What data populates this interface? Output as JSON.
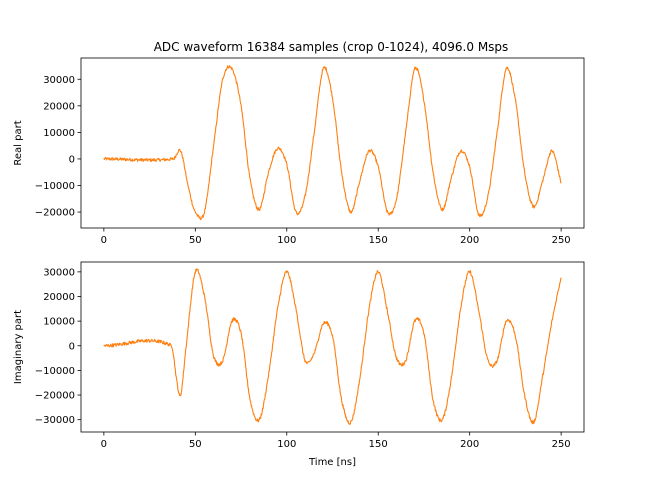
{
  "figure": {
    "title": "ADC waveform 16384 samples (crop 0-1024), 4096.0 Msps"
  },
  "chart_data": [
    {
      "type": "line",
      "title": "ADC waveform 16384 samples (crop 0-1024), 4096.0 Msps",
      "xlabel": "",
      "ylabel": "Real part",
      "xlim": [
        -12.5,
        262.5
      ],
      "ylim": [
        -26000,
        38000
      ],
      "xticks": [
        0,
        50,
        100,
        150,
        200,
        250
      ],
      "yticks": [
        -20000,
        -10000,
        0,
        10000,
        20000,
        30000
      ],
      "ytick_labels": [
        "−20000",
        "−10000",
        "0",
        "10000",
        "20000",
        "30000"
      ],
      "grid": false,
      "color": "#ff7f0e",
      "noise_amplitude": 600,
      "series": [
        {
          "x": [
            0,
            38,
            42,
            46,
            50,
            55,
            60,
            65,
            70,
            75,
            80,
            85,
            90,
            95,
            100,
            105,
            110,
            115,
            120,
            125,
            130,
            135,
            140,
            145,
            150,
            155,
            160,
            165,
            170,
            175,
            180,
            185,
            190,
            195,
            200,
            205,
            210,
            215,
            220,
            225,
            230,
            235,
            240,
            245,
            250
          ],
          "y": [
            0,
            0,
            3000,
            -10000,
            -20000,
            -20000,
            5000,
            30000,
            34000,
            20000,
            -8000,
            -19000,
            -5000,
            4000,
            -2000,
            -20000,
            -14000,
            10000,
            34000,
            23000,
            -5000,
            -20000,
            -8000,
            3000,
            -3000,
            -20000,
            -15000,
            10000,
            34000,
            22000,
            -5000,
            -19000,
            -7000,
            3000,
            -3000,
            -21000,
            -14000,
            10000,
            34000,
            22000,
            -5000,
            -18000,
            -8000,
            3000,
            -9000
          ]
        }
      ]
    },
    {
      "type": "line",
      "title": "",
      "xlabel": "Time [ns]",
      "ylabel": "Imaginary part",
      "xlim": [
        -12.5,
        262.5
      ],
      "ylim": [
        -35000,
        34000
      ],
      "xticks": [
        0,
        50,
        100,
        150,
        200,
        250
      ],
      "yticks": [
        -30000,
        -20000,
        -10000,
        0,
        10000,
        20000,
        30000
      ],
      "ytick_labels": [
        "−30000",
        "−20000",
        "−10000",
        "0",
        "10000",
        "20000",
        "30000"
      ],
      "grid": false,
      "color": "#ff7f0e",
      "noise_amplitude": 700,
      "series": [
        {
          "x": [
            0,
            37,
            40,
            42,
            45,
            50,
            55,
            60,
            65,
            70,
            75,
            80,
            85,
            90,
            95,
            100,
            105,
            110,
            115,
            120,
            125,
            130,
            135,
            140,
            145,
            150,
            155,
            160,
            165,
            170,
            175,
            180,
            185,
            190,
            195,
            200,
            205,
            210,
            215,
            220,
            225,
            230,
            235,
            240,
            245,
            250
          ],
          "y": [
            0,
            0,
            -15000,
            -20000,
            0,
            30000,
            20000,
            -4000,
            -6000,
            10000,
            5000,
            -22000,
            -30000,
            -12000,
            15000,
            30000,
            15000,
            -6000,
            -3000,
            9000,
            4000,
            -22000,
            -31000,
            -13000,
            15000,
            30000,
            14000,
            -5000,
            -6000,
            10000,
            5000,
            -22000,
            -30000,
            -13000,
            15000,
            30000,
            14000,
            -6000,
            -6000,
            10000,
            4000,
            -20000,
            -31000,
            -12000,
            10000,
            28000
          ]
        }
      ]
    }
  ]
}
